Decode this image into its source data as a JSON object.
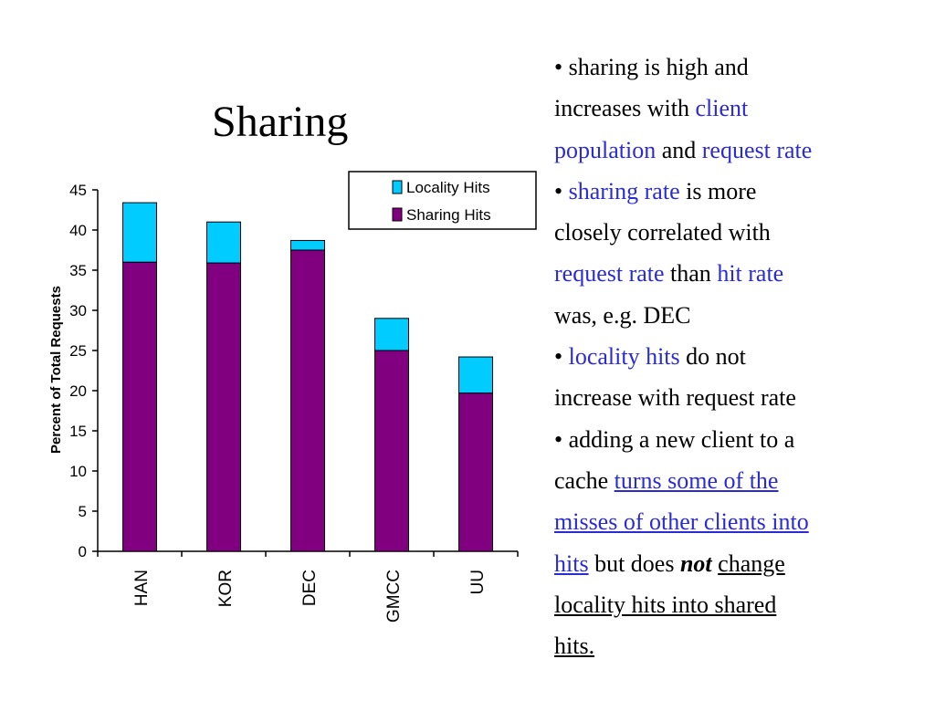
{
  "slide": {
    "title": "Sharing"
  },
  "colors": {
    "sharing": "#800080",
    "locality": "#00ccff",
    "highlight": "#2b2bd6"
  },
  "chart_data": {
    "type": "bar",
    "stacked": true,
    "categories": [
      "HAN",
      "KOR",
      "DEC",
      "GMCC",
      "UU"
    ],
    "series": [
      {
        "name": "Sharing Hits",
        "values": [
          36,
          35.9,
          37.5,
          25,
          19.7
        ]
      },
      {
        "name": "Locality Hits",
        "values": [
          7.4,
          5.1,
          1.2,
          4,
          4.5
        ]
      }
    ],
    "ylabel": "Percent of Total Requests",
    "ylim": [
      0,
      45
    ],
    "yticks": [
      0,
      5,
      10,
      15,
      20,
      25,
      30,
      35,
      40,
      45
    ],
    "legend_position": "top-right",
    "legend": [
      "Locality Hits",
      "Sharing Hits"
    ]
  },
  "bullets": [
    [
      {
        "t": "• sharing is high and"
      }
    ],
    [
      {
        "t": "increases with "
      },
      {
        "t": "client",
        "c": "hl"
      }
    ],
    [
      {
        "t": "population",
        "c": "hl"
      },
      {
        "t": " and "
      },
      {
        "t": "request rate",
        "c": "hl"
      }
    ],
    [
      {
        "t": "• "
      },
      {
        "t": "sharing rate",
        "c": "hl"
      },
      {
        "t": " is more"
      }
    ],
    [
      {
        "t": "closely correlated with"
      }
    ],
    [
      {
        "t": "request rate",
        "c": "hl"
      },
      {
        "t": " than "
      },
      {
        "t": "hit rate",
        "c": "hl"
      }
    ],
    [
      {
        "t": "was, e.g. DEC"
      }
    ],
    [
      {
        "t": "• "
      },
      {
        "t": "locality hits",
        "c": "hl"
      },
      {
        "t": " do not"
      }
    ],
    [
      {
        "t": "increase with request rate"
      }
    ],
    [
      {
        "t": "• adding a new client to a"
      }
    ],
    [
      {
        "t": "cache "
      },
      {
        "t": "turns some of the",
        "c": "hl ul"
      }
    ],
    [
      {
        "t": "misses of other clients into",
        "c": "hl ul"
      }
    ],
    [
      {
        "t": "hits",
        "c": "hl ul"
      },
      {
        "t": " but does "
      },
      {
        "t": "not",
        "c": "bi"
      },
      {
        "t": " "
      },
      {
        "t": "change",
        "c": "ul"
      }
    ],
    [
      {
        "t": "locality hits into shared",
        "c": "ul"
      }
    ],
    [
      {
        "t": "hits.",
        "c": "ul"
      }
    ]
  ]
}
